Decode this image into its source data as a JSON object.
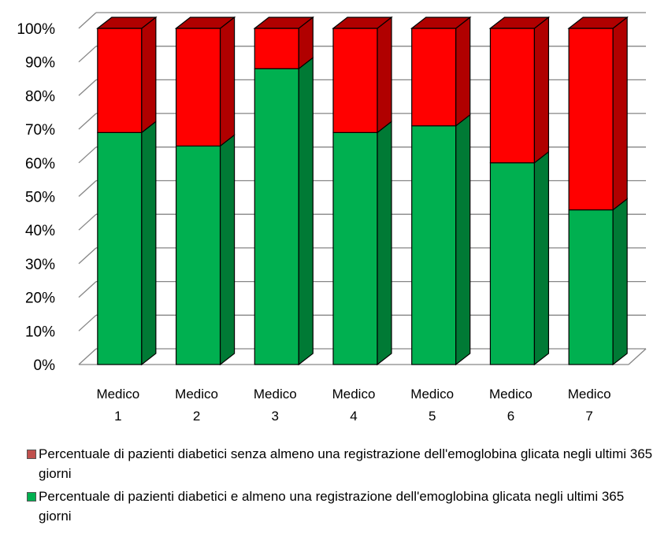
{
  "chart_data": {
    "type": "bar",
    "stacked": true,
    "percent_stacked": true,
    "three_d": true,
    "categories": [
      [
        "Medico",
        "1"
      ],
      [
        "Medico",
        "2"
      ],
      [
        "Medico",
        "3"
      ],
      [
        "Medico",
        "4"
      ],
      [
        "Medico",
        "5"
      ],
      [
        "Medico",
        "6"
      ],
      [
        "Medico",
        "7"
      ]
    ],
    "y_ticks": [
      "0%",
      "10%",
      "20%",
      "30%",
      "40%",
      "50%",
      "60%",
      "70%",
      "80%",
      "90%",
      "100%"
    ],
    "ylim": [
      0,
      100
    ],
    "grid": true,
    "legend_position": "bottom",
    "series": [
      {
        "name": "Percentuale di pazienti diabetici e almeno una registrazione dell'emoglobina glicata negli ultimi 365 giorni",
        "values": [
          69,
          65,
          88,
          69,
          71,
          60,
          46
        ],
        "color": "#00B050",
        "side_color": "#007A35"
      },
      {
        "name": "Percentuale di pazienti diabetici senza almeno una registrazione dell'emoglobina glicata negli ultimi 365 giorni",
        "values": [
          31,
          35,
          12,
          31,
          29,
          40,
          54
        ],
        "color": "#FF0000",
        "side_color": "#B00000"
      }
    ]
  }
}
